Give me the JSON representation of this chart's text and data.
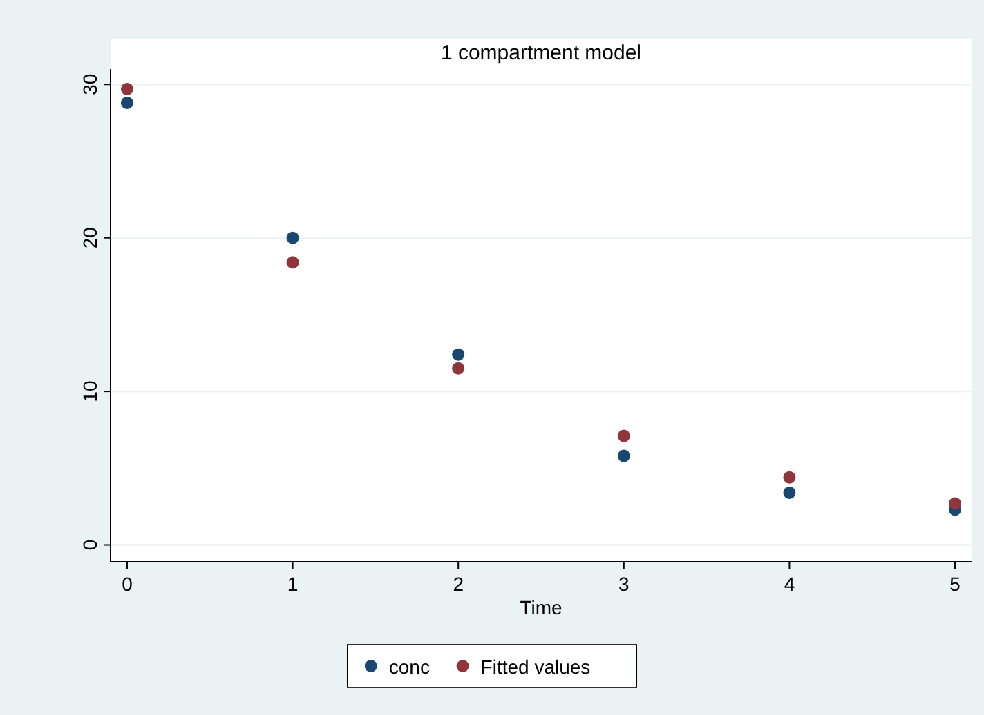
{
  "chart_data": {
    "type": "scatter",
    "title": "1 compartment model",
    "xlabel": "Time",
    "x": [
      0,
      1,
      2,
      3,
      4,
      5
    ],
    "series": [
      {
        "name": "conc",
        "color": "#1a476f",
        "values": [
          28.8,
          20.0,
          12.4,
          5.8,
          3.4,
          2.3
        ]
      },
      {
        "name": "Fitted values",
        "color": "#90353b",
        "values": [
          29.7,
          18.4,
          11.5,
          7.1,
          4.4,
          2.7
        ]
      }
    ],
    "xlim": [
      -0.1,
      5.1
    ],
    "xticks": [
      0,
      1,
      2,
      3,
      4,
      5
    ],
    "ylim": [
      -1.1,
      31
    ],
    "yticks": [
      0,
      10,
      20,
      30
    ],
    "grid": "y",
    "legend": "bottom",
    "marker": "circle"
  }
}
